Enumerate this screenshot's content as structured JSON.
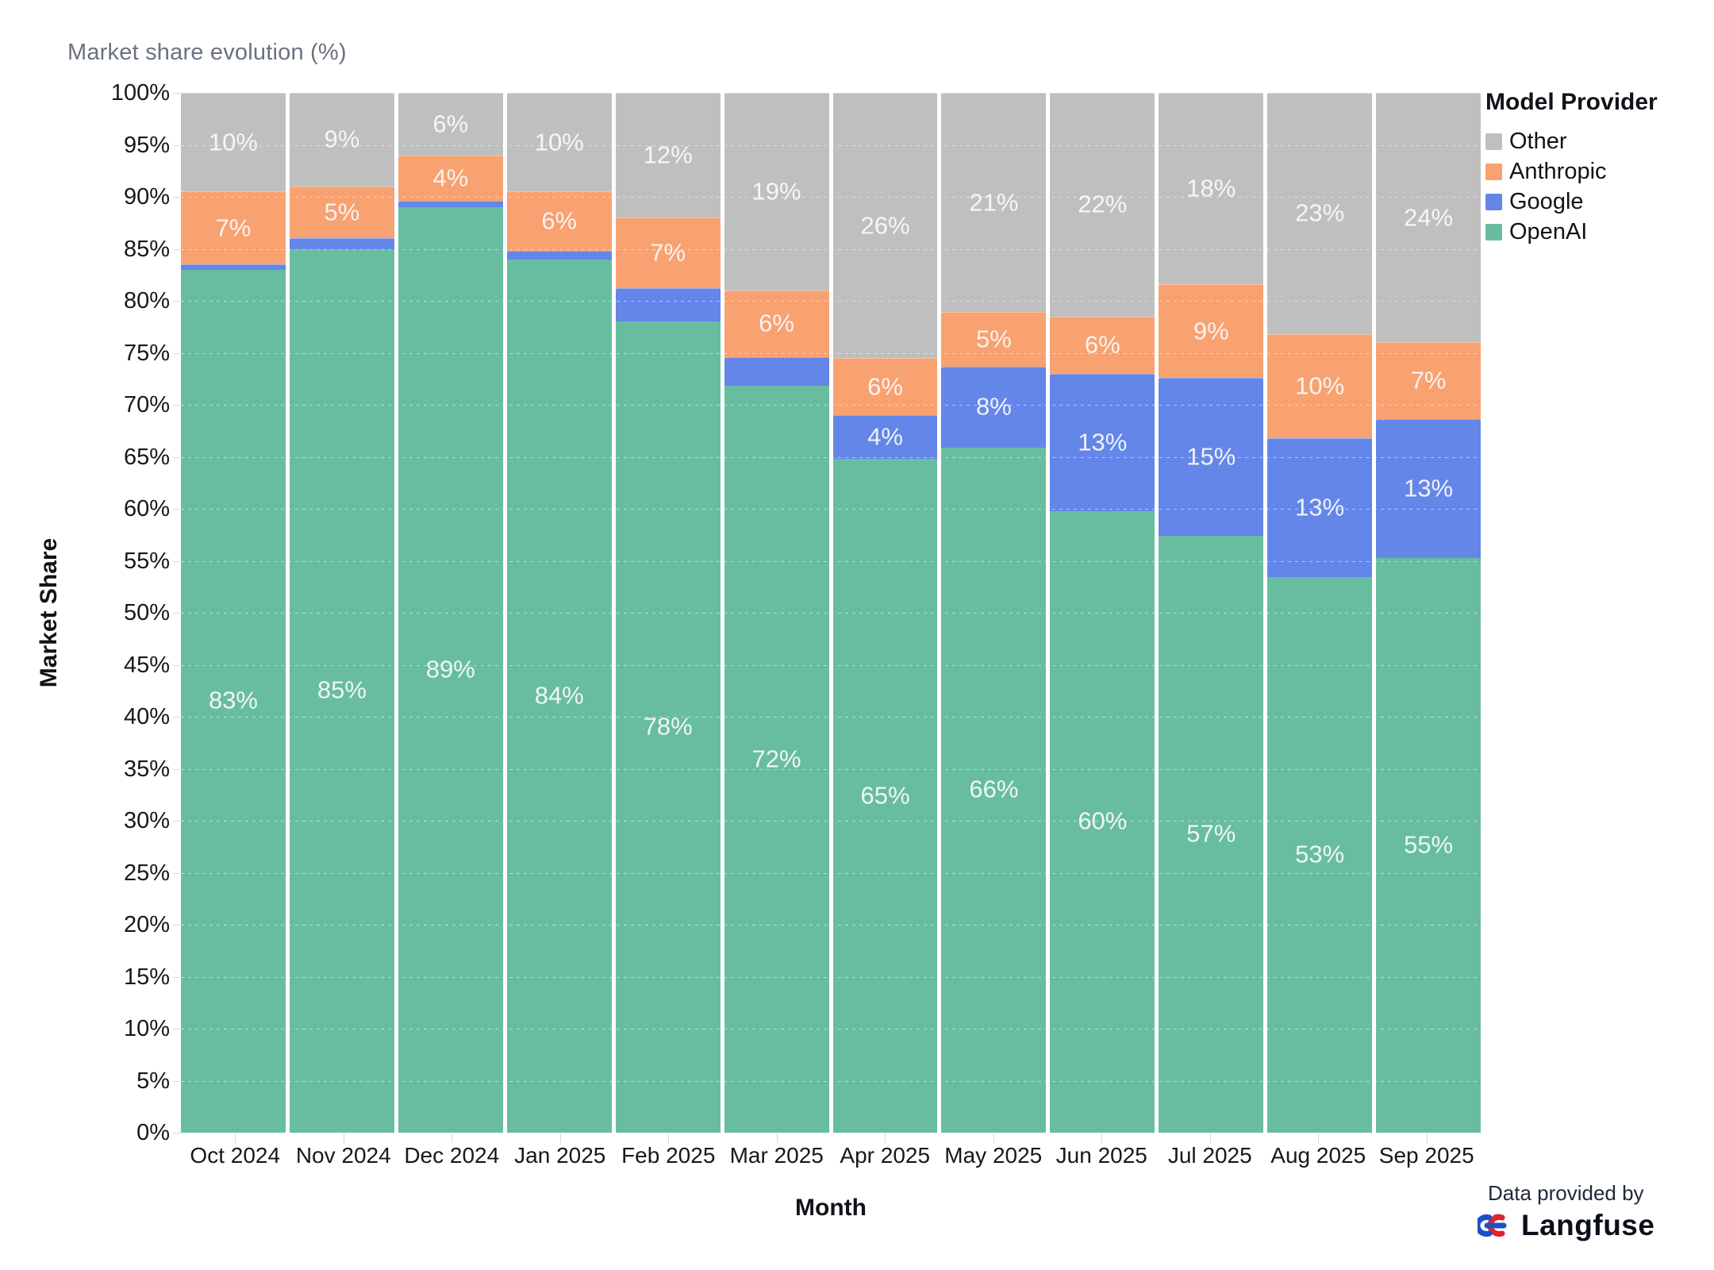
{
  "title": "Market share evolution (%)",
  "axes": {
    "y": {
      "title": "Market Share",
      "min": 0,
      "max": 100,
      "step": 5,
      "suffix": "%"
    },
    "x": {
      "title": "Month"
    }
  },
  "legend": {
    "title": "Model Provider",
    "items": [
      {
        "label": "Other",
        "color": "#c0bfbf"
      },
      {
        "label": "Anthropic",
        "color": "#f8a171"
      },
      {
        "label": "Google",
        "color": "#6486e9"
      },
      {
        "label": "OpenAI",
        "color": "#68bda1"
      }
    ]
  },
  "attribution": {
    "prefix": "Data provided by",
    "brand": "Langfuse"
  },
  "colors": {
    "openai": "#68bda1",
    "google": "#6486e9",
    "anthropic": "#f8a171",
    "other": "#c0bfbf",
    "bar_label": "rgba(250,250,250,0.93)",
    "logo_red": "#e0242e",
    "logo_blue": "#1c50c8"
  },
  "chart_data": {
    "type": "bar",
    "stacked": true,
    "title": "Market share evolution (%)",
    "xlabel": "Month",
    "ylabel": "Market Share",
    "ylim": [
      0,
      100
    ],
    "grid": true,
    "legend_position": "right",
    "label_threshold_pct": 4,
    "categories": [
      "Oct 2024",
      "Nov 2024",
      "Dec 2024",
      "Jan 2025",
      "Feb 2025",
      "Mar 2025",
      "Apr 2025",
      "May 2025",
      "Jun 2025",
      "Jul 2025",
      "Aug 2025",
      "Sep 2025"
    ],
    "series": [
      {
        "name": "OpenAI",
        "color": "#68bda1",
        "values": [
          83,
          85,
          89,
          84,
          78,
          71.8,
          64.8,
          65.9,
          59.8,
          57.4,
          53.4,
          55.3
        ],
        "shown_labels": [
          "83%",
          "85%",
          "89%",
          "84%",
          "78%",
          "72%",
          "65%",
          "66%",
          "60%",
          "57%",
          "53%",
          "55%"
        ]
      },
      {
        "name": "Google",
        "color": "#6486e9",
        "values": [
          0.5,
          1,
          0.6,
          0.8,
          3.2,
          2.8,
          4.2,
          7.8,
          13.2,
          15.2,
          13.4,
          13.3
        ],
        "shown_labels": [
          null,
          null,
          null,
          null,
          null,
          null,
          "4%",
          "8%",
          "13%",
          "15%",
          "13%",
          "13%"
        ]
      },
      {
        "name": "Anthropic",
        "color": "#f8a171",
        "values": [
          7,
          5,
          4.4,
          5.7,
          6.8,
          6.4,
          5.5,
          5.2,
          5.5,
          9,
          10,
          7.4
        ],
        "shown_labels": [
          "7%",
          "5%",
          "4%",
          "6%",
          "7%",
          "6%",
          "6%",
          "5%",
          "6%",
          "9%",
          "10%",
          "7%"
        ]
      },
      {
        "name": "Other",
        "color": "#c0bfbf",
        "values": [
          9.5,
          9,
          6,
          9.5,
          12,
          19,
          25.5,
          21.1,
          21.5,
          18.4,
          23.2,
          24
        ],
        "shown_labels": [
          "10%",
          "9%",
          "6%",
          "10%",
          "12%",
          "19%",
          "26%",
          "21%",
          "22%",
          "18%",
          "23%",
          "24%"
        ]
      }
    ]
  }
}
